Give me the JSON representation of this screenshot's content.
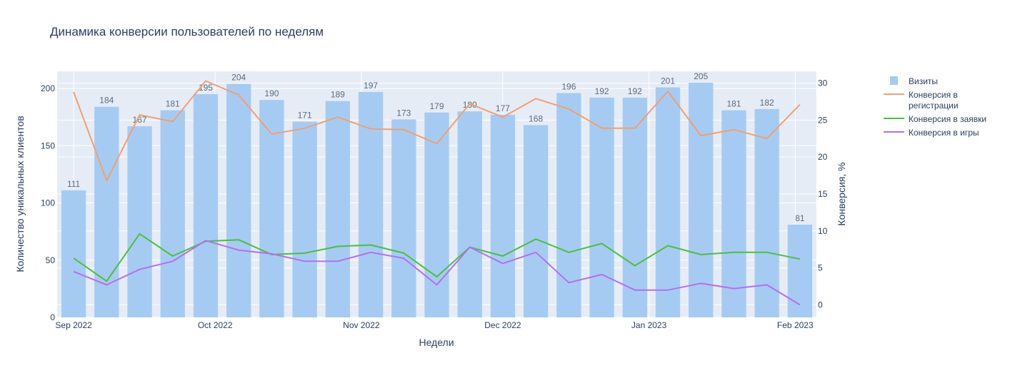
{
  "chart_data": {
    "type": "bar",
    "title": "Динамика конверсии пользователей по неделям",
    "xlabel": "Недели",
    "ylabel": "Количество уникальных клиентов",
    "y2label": "Конверсия, %",
    "ylim": [
      0,
      215
    ],
    "y2lim": [
      -1.7,
      31.6
    ],
    "yticks": [
      0,
      50,
      100,
      150,
      200
    ],
    "y2ticks": [
      0,
      5,
      10,
      15,
      20,
      25,
      30
    ],
    "grid": true,
    "legend_position": "top-right",
    "x": [
      "2022-09-01",
      "2022-09-08",
      "2022-09-15",
      "2022-09-22",
      "2022-09-29",
      "2022-10-06",
      "2022-10-13",
      "2022-10-20",
      "2022-10-27",
      "2022-11-03",
      "2022-11-10",
      "2022-11-17",
      "2022-11-24",
      "2022-12-01",
      "2022-12-08",
      "2022-12-15",
      "2022-12-22",
      "2022-12-29",
      "2023-01-05",
      "2023-01-12",
      "2023-01-19",
      "2023-01-26",
      "2023-02-02"
    ],
    "xtick_dates": [
      "2022-09-01",
      "2022-10-01",
      "2022-11-01",
      "2022-12-01",
      "2023-01-01",
      "2023-02-01"
    ],
    "xtick_labels": [
      "Sep 2022",
      "Oct 2022",
      "Nov 2022",
      "Dec 2022",
      "Jan 2023",
      "Feb 2023"
    ],
    "series": [
      {
        "name": "Визиты",
        "type": "bar",
        "axis": "y",
        "color": "#a6cbf2",
        "values": [
          111,
          184,
          167,
          181,
          195,
          204,
          190,
          171,
          189,
          197,
          173,
          179,
          180,
          177,
          168,
          196,
          192,
          192,
          201,
          205,
          181,
          182,
          81
        ]
      },
      {
        "name": "Конверсия в регистрации",
        "legend_lines": [
          "Конверсия в",
          "регистрации"
        ],
        "type": "line",
        "axis": "y2",
        "color": "#f0a070",
        "values": [
          28.8,
          16.8,
          25.7,
          24.8,
          30.3,
          28.4,
          23.1,
          23.9,
          25.4,
          23.8,
          23.7,
          21.8,
          27.2,
          25.4,
          27.9,
          26.5,
          23.9,
          23.9,
          28.9,
          22.9,
          23.7,
          22.5,
          27.1
        ]
      },
      {
        "name": "Конверсия в заявки",
        "type": "line",
        "axis": "y2",
        "color": "#4cbf3f",
        "values": [
          6.3,
          3.2,
          9.6,
          6.6,
          8.6,
          8.8,
          6.8,
          7.0,
          7.9,
          8.1,
          7.0,
          3.8,
          7.8,
          6.6,
          8.9,
          7.1,
          8.3,
          5.3,
          8.0,
          6.8,
          7.1,
          7.1,
          6.2
        ]
      },
      {
        "name": "Конверсия в игры",
        "type": "line",
        "axis": "y2",
        "color": "#b56ef0",
        "values": [
          4.5,
          2.7,
          4.8,
          5.9,
          8.7,
          7.4,
          6.9,
          5.9,
          5.9,
          7.1,
          6.3,
          2.7,
          7.8,
          5.6,
          7.1,
          3.0,
          4.1,
          2.0,
          2.0,
          2.9,
          2.2,
          2.7,
          0.0
        ]
      }
    ]
  }
}
